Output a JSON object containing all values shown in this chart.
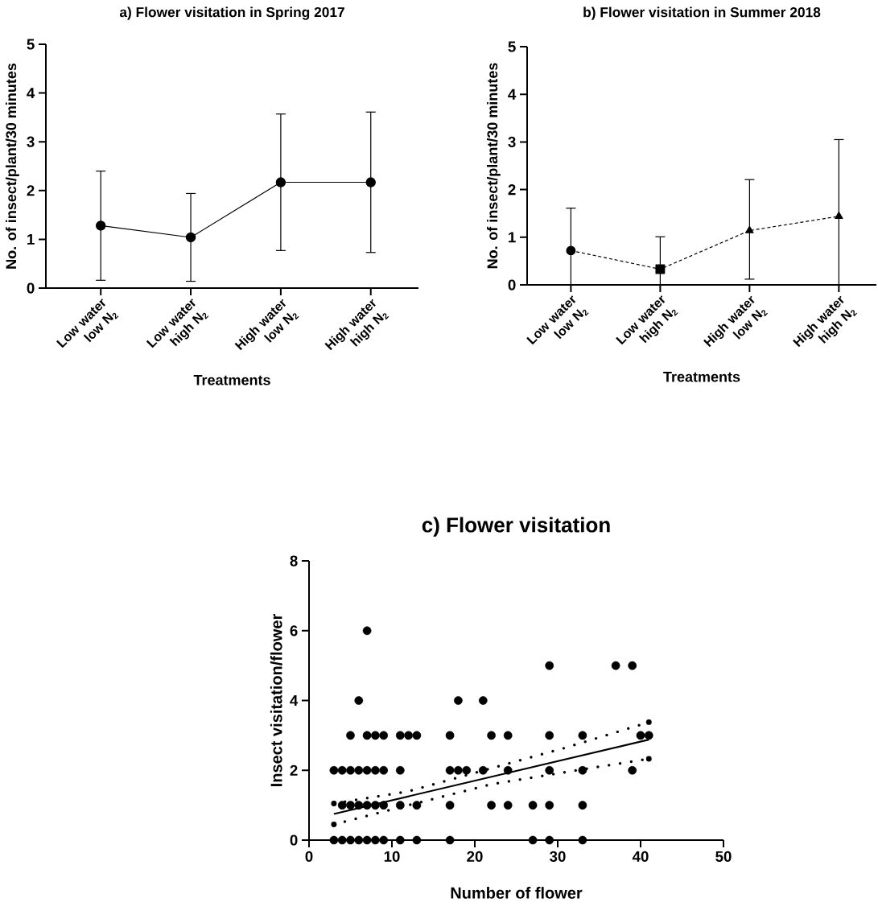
{
  "chart_data": [
    {
      "type": "line",
      "title": "a) Flower visitation in Spring 2017",
      "xlabel": "Treatments",
      "ylabel": "No. of insect/plant/30 minutes",
      "categories": [
        "Low water low N$_{2}$",
        "Low water high N$_{2}$",
        "High water low N$_{2}$",
        "High water high N$_{2}$"
      ],
      "ylim": [
        0,
        5
      ],
      "yticks": [
        0,
        1,
        2,
        3,
        4,
        5
      ],
      "marker": "circle",
      "line_style": "solid",
      "series": [
        {
          "color": "#000000",
          "values": [
            1.28,
            1.04,
            2.17,
            2.17
          ],
          "errors": [
            1.12,
            0.9,
            1.4,
            1.44
          ]
        }
      ]
    },
    {
      "type": "line",
      "title": "b) Flower visitation in Summer 2018",
      "xlabel": "Treatments",
      "ylabel": "No. of insect/plant/30 minutes",
      "categories": [
        "Low water low N$_{2}$",
        "Low water high N$_{2}$",
        "High water low N$_{2}$",
        "High water high N$_{2}$"
      ],
      "ylim": [
        0,
        5
      ],
      "yticks": [
        0,
        1,
        2,
        3,
        4,
        5
      ],
      "line_style": "dashed",
      "series": [
        {
          "color": "#000000",
          "values": [
            0.72,
            0.33,
            1.14,
            1.44
          ],
          "errors": [
            [
              0,
              1.61
            ],
            [
              0,
              1.01
            ],
            [
              0.12,
              2.21
            ],
            [
              0,
              3.05
            ]
          ],
          "marker": [
            "circle",
            "square",
            "triangle",
            "triangle-down"
          ]
        }
      ]
    },
    {
      "type": "scatter",
      "title": "c) Flower visitation",
      "xlabel": "Number of flower",
      "ylabel": "Insect visitation/flower",
      "xlim": [
        0,
        50
      ],
      "xticks": [
        0,
        10,
        20,
        30,
        40,
        50
      ],
      "ylim": [
        0,
        8
      ],
      "yticks": [
        0,
        2,
        4,
        6,
        8
      ],
      "marker": "circle",
      "series": [
        {
          "type": "scatter",
          "color": "#000000",
          "x": [
            3,
            4,
            5,
            6,
            7,
            8,
            9,
            11,
            13,
            17,
            27,
            29,
            33,
            4,
            5,
            6,
            7,
            8,
            9,
            11,
            13,
            17,
            22,
            24,
            27,
            29,
            33,
            3,
            4,
            5,
            6,
            7,
            8,
            9,
            11,
            17,
            18,
            19,
            21,
            24,
            29,
            33,
            39,
            5,
            7,
            8,
            9,
            11,
            12,
            13,
            17,
            22,
            24,
            29,
            33,
            40,
            41,
            6,
            18,
            21,
            29,
            37,
            39,
            7
          ],
          "values": [
            0,
            0,
            0,
            0,
            0,
            0,
            0,
            0,
            0,
            0,
            0,
            0,
            0,
            1,
            1,
            1,
            1,
            1,
            1,
            1,
            1,
            1,
            1,
            1,
            1,
            1,
            1,
            2,
            2,
            2,
            2,
            2,
            2,
            2,
            2,
            2,
            2,
            2,
            2,
            2,
            2,
            2,
            2,
            3,
            3,
            3,
            3,
            3,
            3,
            3,
            3,
            3,
            3,
            3,
            3,
            3,
            3,
            4,
            4,
            4,
            5,
            5,
            5,
            6
          ]
        },
        {
          "type": "line",
          "color": "#000000",
          "line_style": "solid",
          "marker": "none",
          "x": [
            3,
            41
          ],
          "values": [
            0.75,
            2.88
          ]
        },
        {
          "type": "line",
          "color": "#000000",
          "line_style": "dotted",
          "marker": "none",
          "x": [
            3,
            12,
            22,
            31,
            41
          ],
          "values": [
            1.05,
            1.4,
            2.06,
            2.65,
            3.38
          ]
        },
        {
          "type": "line",
          "color": "#000000",
          "line_style": "dotted",
          "marker": "none",
          "x": [
            3,
            12,
            22,
            31,
            41
          ],
          "values": [
            0.45,
            1.0,
            1.6,
            1.95,
            2.33
          ]
        }
      ]
    }
  ]
}
